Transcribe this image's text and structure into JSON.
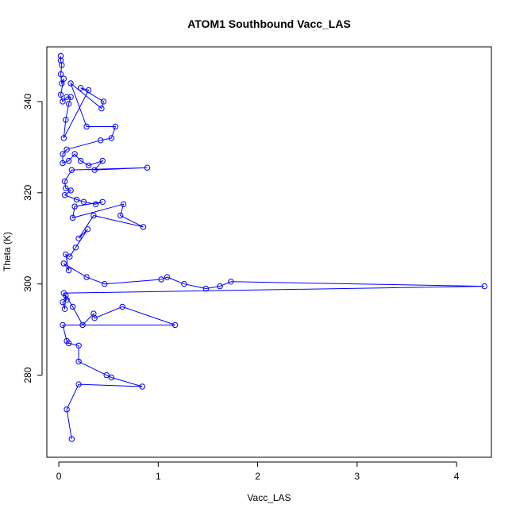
{
  "chart_data": {
    "type": "line",
    "title": "ATOM1 Southbound Vacc_LAS",
    "xlabel": "Vacc_LAS",
    "ylabel": "Theta (K)",
    "xlim": [
      -0.12,
      4.35
    ],
    "ylim": [
      262,
      352
    ],
    "xticks": [
      0,
      1,
      2,
      3,
      4
    ],
    "yticks": [
      280,
      300,
      320,
      340
    ],
    "xtick_labels": [
      "0",
      "1",
      "2",
      "3",
      "4"
    ],
    "ytick_labels": [
      "280",
      "300",
      "320",
      "340"
    ],
    "grid": false,
    "series": [
      {
        "color": "#0000ff",
        "marker": "open-circle",
        "points": [
          [
            0.02,
            350
          ],
          [
            0.02,
            349
          ],
          [
            0.03,
            348
          ],
          [
            0.02,
            346
          ],
          [
            0.03,
            344
          ],
          [
            0.05,
            345
          ],
          [
            0.02,
            341.5
          ],
          [
            0.04,
            340
          ],
          [
            0.08,
            341
          ],
          [
            0.12,
            341
          ],
          [
            0.1,
            339.5
          ],
          [
            0.07,
            336
          ],
          [
            0.05,
            332
          ],
          [
            0.3,
            342.5
          ],
          [
            0.22,
            343
          ],
          [
            0.45,
            340
          ],
          [
            0.43,
            338.5
          ],
          [
            0.12,
            344
          ],
          [
            0.28,
            334.5
          ],
          [
            0.57,
            334.5
          ],
          [
            0.53,
            332
          ],
          [
            0.42,
            331.5
          ],
          [
            0.08,
            329.5
          ],
          [
            0.04,
            328.5
          ],
          [
            0.04,
            326.5
          ],
          [
            0.1,
            327
          ],
          [
            0.16,
            328.5
          ],
          [
            0.22,
            327
          ],
          [
            0.3,
            326
          ],
          [
            0.44,
            327
          ],
          [
            0.36,
            325
          ],
          [
            0.89,
            325.5
          ],
          [
            0.13,
            325
          ],
          [
            0.06,
            322.5
          ],
          [
            0.07,
            321
          ],
          [
            0.12,
            320.5
          ],
          [
            0.06,
            319.5
          ],
          [
            0.18,
            318.5
          ],
          [
            0.25,
            318
          ],
          [
            0.37,
            317.5
          ],
          [
            0.44,
            318
          ],
          [
            0.16,
            317
          ],
          [
            0.14,
            314.5
          ],
          [
            0.65,
            317.5
          ],
          [
            0.62,
            315
          ],
          [
            0.85,
            312.5
          ],
          [
            0.35,
            315
          ],
          [
            0.2,
            310
          ],
          [
            0.29,
            312
          ],
          [
            0.17,
            308
          ],
          [
            0.11,
            306
          ],
          [
            0.07,
            306.5
          ],
          [
            0.1,
            303
          ],
          [
            0.05,
            304.5
          ],
          [
            0.28,
            301.5
          ],
          [
            0.46,
            300
          ],
          [
            1.03,
            301
          ],
          [
            1.09,
            301.5
          ],
          [
            1.26,
            300
          ],
          [
            1.48,
            299
          ],
          [
            1.62,
            299.5
          ],
          [
            1.73,
            300.5
          ],
          [
            4.28,
            299.5
          ],
          [
            0.05,
            298
          ],
          [
            0.08,
            296.5
          ],
          [
            0.04,
            296
          ],
          [
            0.06,
            294.5
          ],
          [
            0.07,
            297.5
          ],
          [
            0.14,
            295
          ],
          [
            0.24,
            291
          ],
          [
            0.35,
            293.5
          ],
          [
            0.36,
            292.5
          ],
          [
            0.64,
            295
          ],
          [
            1.17,
            291
          ],
          [
            0.04,
            291
          ],
          [
            0.08,
            287.5
          ],
          [
            0.1,
            287
          ],
          [
            0.2,
            286.5
          ],
          [
            0.2,
            283
          ],
          [
            0.48,
            280
          ],
          [
            0.53,
            279.5
          ],
          [
            0.84,
            277.5
          ],
          [
            0.2,
            278
          ],
          [
            0.08,
            272.5
          ],
          [
            0.13,
            266
          ]
        ]
      }
    ]
  }
}
